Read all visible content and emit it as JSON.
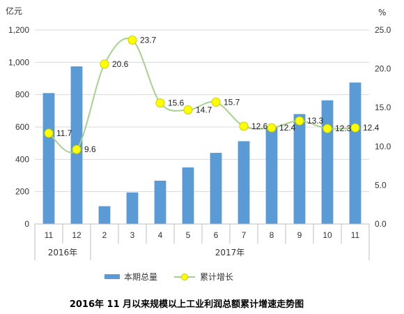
{
  "chart_data": {
    "type": "bar",
    "title": "2016年 11 月以来规模以上工业利润总额累计增速走势图",
    "left_unit": "亿元",
    "right_unit": "%",
    "categories": [
      "11",
      "12",
      "2",
      "3",
      "4",
      "5",
      "6",
      "7",
      "8",
      "9",
      "10",
      "11"
    ],
    "year_groups": [
      {
        "label": "2016年",
        "start": 0,
        "end": 1
      },
      {
        "label": "2017年",
        "start": 2,
        "end": 11
      }
    ],
    "series": [
      {
        "name": "本期总量",
        "type": "bar",
        "axis": "left",
        "color": "#5b9bd5",
        "values": [
          810,
          975,
          110,
          195,
          268,
          350,
          440,
          512,
          600,
          680,
          765,
          875
        ]
      },
      {
        "name": "累计增长",
        "type": "line",
        "axis": "right",
        "color": "#a9d18e",
        "marker_color": "#ffff00",
        "values": [
          11.7,
          9.6,
          20.6,
          23.7,
          15.6,
          14.7,
          15.7,
          12.6,
          12.4,
          13.3,
          12.3,
          12.4
        ],
        "labels": [
          "11.7",
          "9.6",
          "20.6",
          "23.7",
          "15.6",
          "14.7",
          "15.7",
          "12.6",
          "12.4",
          "13.3",
          "12.3",
          "12.4"
        ]
      }
    ],
    "ylim_left": [
      0,
      1200
    ],
    "yticks_left": [
      "0",
      "200",
      "400",
      "600",
      "800",
      "1,000",
      "1,200"
    ],
    "ylim_right": [
      0,
      25
    ],
    "yticks_right": [
      "0.0",
      "5.0",
      "10.0",
      "15.0",
      "20.0",
      "25.0"
    ],
    "grid": true,
    "legend": "bottom"
  }
}
